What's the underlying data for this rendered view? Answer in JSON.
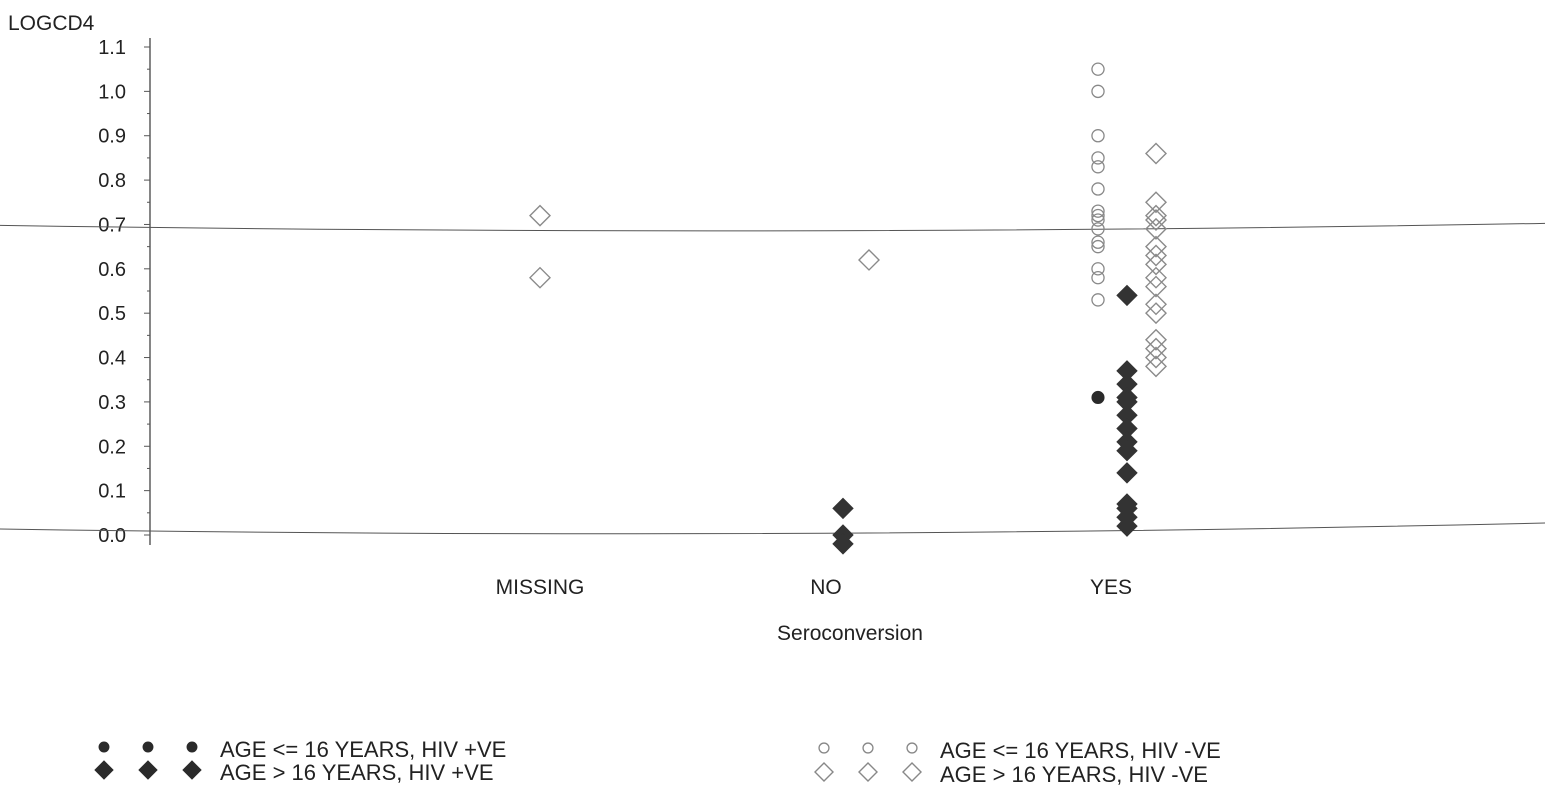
{
  "chart_data": {
    "type": "scatter",
    "ylabel": "LOGCD4",
    "xlabel": "Seroconversion",
    "categories": [
      "MISSING",
      "NO",
      "YES"
    ],
    "ylim": [
      0.0,
      1.1
    ],
    "yticks": [
      "0.0",
      "0.1",
      "0.2",
      "0.3",
      "0.4",
      "0.5",
      "0.6",
      "0.7",
      "0.8",
      "0.9",
      "1.0",
      "1.1"
    ],
    "grid": false,
    "reference_lines": [
      0.68,
      0.0
    ],
    "legend_position": "bottom",
    "series": [
      {
        "name": "AGE <= 16 YEARS, HIV +VE",
        "marker": "filled-circle",
        "color": "#2a2a2a",
        "points": [
          {
            "category": "YES",
            "offset": -1,
            "y": 0.31
          }
        ]
      },
      {
        "name": "AGE > 16 YEARS, HIV +VE",
        "marker": "filled-diamond",
        "color": "#333333",
        "points": [
          {
            "category": "NO",
            "offset": 0,
            "y": 0.06
          },
          {
            "category": "NO",
            "offset": 0,
            "y": 0.0
          },
          {
            "category": "NO",
            "offset": 0,
            "y": -0.02
          },
          {
            "category": "YES",
            "offset": 0,
            "y": 0.54
          },
          {
            "category": "YES",
            "offset": 0,
            "y": 0.37
          },
          {
            "category": "YES",
            "offset": 0,
            "y": 0.34
          },
          {
            "category": "YES",
            "offset": 0,
            "y": 0.31
          },
          {
            "category": "YES",
            "offset": 0,
            "y": 0.3
          },
          {
            "category": "YES",
            "offset": 0,
            "y": 0.27
          },
          {
            "category": "YES",
            "offset": 0,
            "y": 0.24
          },
          {
            "category": "YES",
            "offset": 0,
            "y": 0.21
          },
          {
            "category": "YES",
            "offset": 0,
            "y": 0.19
          },
          {
            "category": "YES",
            "offset": 0,
            "y": 0.14
          },
          {
            "category": "YES",
            "offset": 0,
            "y": 0.07
          },
          {
            "category": "YES",
            "offset": 0,
            "y": 0.06
          },
          {
            "category": "YES",
            "offset": 0,
            "y": 0.04
          },
          {
            "category": "YES",
            "offset": 0,
            "y": 0.02
          }
        ]
      },
      {
        "name": "AGE <= 16 YEARS, HIV -VE",
        "marker": "open-circle",
        "color": "#888888",
        "points": [
          {
            "category": "YES",
            "offset": -1,
            "y": 1.05
          },
          {
            "category": "YES",
            "offset": -1,
            "y": 1.0
          },
          {
            "category": "YES",
            "offset": -1,
            "y": 0.9
          },
          {
            "category": "YES",
            "offset": -1,
            "y": 0.85
          },
          {
            "category": "YES",
            "offset": -1,
            "y": 0.83
          },
          {
            "category": "YES",
            "offset": -1,
            "y": 0.78
          },
          {
            "category": "YES",
            "offset": -1,
            "y": 0.73
          },
          {
            "category": "YES",
            "offset": -1,
            "y": 0.72
          },
          {
            "category": "YES",
            "offset": -1,
            "y": 0.71
          },
          {
            "category": "YES",
            "offset": -1,
            "y": 0.69
          },
          {
            "category": "YES",
            "offset": -1,
            "y": 0.66
          },
          {
            "category": "YES",
            "offset": -1,
            "y": 0.65
          },
          {
            "category": "YES",
            "offset": -1,
            "y": 0.6
          },
          {
            "category": "YES",
            "offset": -1,
            "y": 0.58
          },
          {
            "category": "YES",
            "offset": -1,
            "y": 0.53
          }
        ]
      },
      {
        "name": "AGE > 16 YEARS, HIV -VE",
        "marker": "open-diamond",
        "color": "#8a8a8a",
        "points": [
          {
            "category": "MISSING",
            "offset": 0,
            "y": 0.72
          },
          {
            "category": "MISSING",
            "offset": 0,
            "y": 0.58
          },
          {
            "category": "NO",
            "offset": 1,
            "y": 0.62
          },
          {
            "category": "YES",
            "offset": 1,
            "y": 0.86
          },
          {
            "category": "YES",
            "offset": 1,
            "y": 0.75
          },
          {
            "category": "YES",
            "offset": 1,
            "y": 0.72
          },
          {
            "category": "YES",
            "offset": 1,
            "y": 0.71
          },
          {
            "category": "YES",
            "offset": 1,
            "y": 0.69
          },
          {
            "category": "YES",
            "offset": 1,
            "y": 0.65
          },
          {
            "category": "YES",
            "offset": 1,
            "y": 0.63
          },
          {
            "category": "YES",
            "offset": 1,
            "y": 0.61
          },
          {
            "category": "YES",
            "offset": 1,
            "y": 0.58
          },
          {
            "category": "YES",
            "offset": 1,
            "y": 0.56
          },
          {
            "category": "YES",
            "offset": 1,
            "y": 0.52
          },
          {
            "category": "YES",
            "offset": 1,
            "y": 0.5
          },
          {
            "category": "YES",
            "offset": 1,
            "y": 0.44
          },
          {
            "category": "YES",
            "offset": 1,
            "y": 0.42
          },
          {
            "category": "YES",
            "offset": 1,
            "y": 0.4
          },
          {
            "category": "YES",
            "offset": 1,
            "y": 0.38
          }
        ]
      }
    ],
    "legend": [
      {
        "label": "AGE <= 16 YEARS, HIV +VE",
        "marker": "filled-circle",
        "color": "#2a2a2a"
      },
      {
        "label": "AGE >  16 YEARS, HIV +VE",
        "marker": "filled-diamond",
        "color": "#2a2a2a"
      },
      {
        "label": "AGE <= 16 YEARS, HIV -VE",
        "marker": "open-circle",
        "color": "#888888"
      },
      {
        "label": "AGE >  16 YEARS, HIV -VE",
        "marker": "open-diamond",
        "color": "#888888"
      }
    ]
  }
}
